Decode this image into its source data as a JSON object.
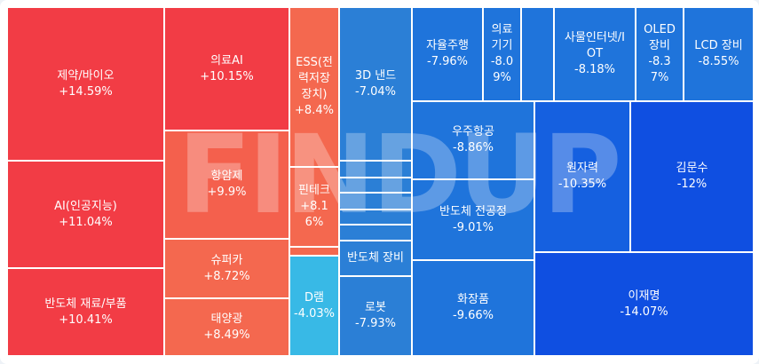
{
  "tiles": {
    "pharma": {
      "name": "제약/바이오",
      "change": "+14.59%"
    },
    "ai": {
      "name": "AI(인공지능)",
      "change": "+11.04%"
    },
    "semimat": {
      "name": "반도체 재료/부품",
      "change": "+10.41%"
    },
    "medai": {
      "name": "의료AI",
      "change": "+10.15%"
    },
    "cancer": {
      "name": "항암제",
      "change": "+9.9%"
    },
    "supercar": {
      "name": "슈퍼카",
      "change": "+8.72%"
    },
    "solar": {
      "name": "태양광",
      "change": "+8.49%"
    },
    "ess": {
      "name": "ESS(전\n력저장\n장치)",
      "change": "+8.4%"
    },
    "fintech": {
      "name": "핀테크",
      "change": "+8.1\n6%"
    },
    "dram": {
      "name": "D램",
      "change": "-4.03%"
    },
    "nand3d": {
      "name": "3D 낸드",
      "change": "-7.04%"
    },
    "semieq": {
      "name": "반도체 장비",
      "change": ""
    },
    "robot": {
      "name": "로봇",
      "change": "-7.93%"
    },
    "autonomous": {
      "name": "자율주행",
      "change": "-7.96%"
    },
    "meddevice": {
      "name": "의료\n기기",
      "change": "-8.0\n9%"
    },
    "iot": {
      "name": "사물인터넷/I\nOT",
      "change": "-8.18%"
    },
    "oled": {
      "name": "OLED\n장비",
      "change": "-8.3\n7%"
    },
    "lcd": {
      "name": "LCD 장비",
      "change": "-8.55%"
    },
    "aerospace": {
      "name": "우주항공",
      "change": "-8.86%"
    },
    "semiproc": {
      "name": "반도체 전공정",
      "change": "-9.01%"
    },
    "cosmetics": {
      "name": "화장품",
      "change": "-9.66%"
    },
    "nuclear": {
      "name": "원자력",
      "change": "-10.35%"
    },
    "kimmunsu": {
      "name": "김문수",
      "change": "-12%"
    },
    "leejm": {
      "name": "이재명",
      "change": "-14.07%"
    }
  },
  "watermark": "FINDUP",
  "colors": {
    "gain_strong": "#f23c45",
    "gain_mid": "#f4604d",
    "loss_light": "#38b9e6",
    "loss_mid": "#2b7fd6",
    "loss_strong": "#0f4fe1"
  }
}
